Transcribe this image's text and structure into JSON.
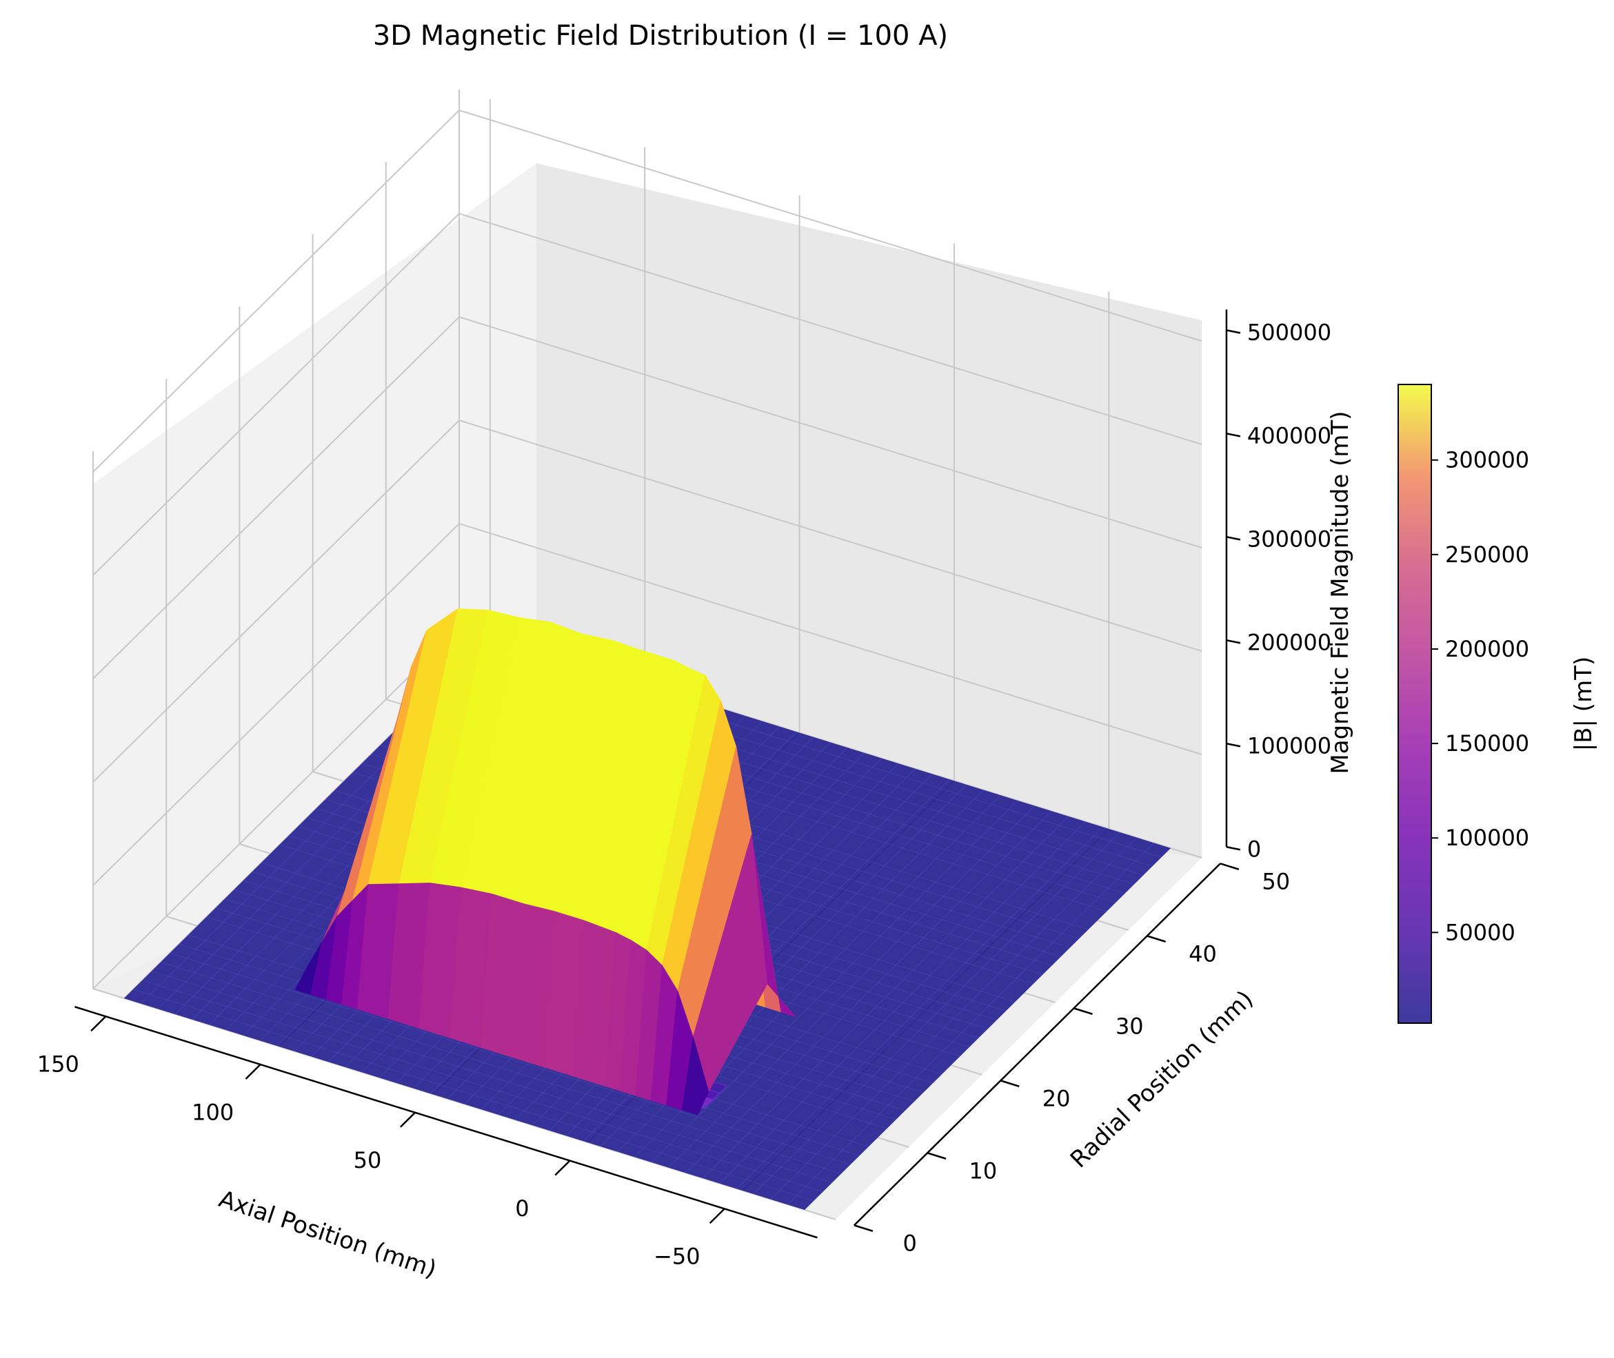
{
  "chart_data": {
    "type": "surface3d",
    "title": "3D Magnetic Field Distribution (I = 100 A)",
    "x_axis": {
      "label": "Axial Position (mm)",
      "range": [
        -80,
        160
      ],
      "ticks": [
        -50,
        0,
        50,
        100,
        150
      ],
      "tick_labels": [
        "−50",
        "0",
        "50",
        "100",
        "150"
      ]
    },
    "y_axis": {
      "label": "Radial Position (mm)",
      "range": [
        0,
        50
      ],
      "ticks": [
        0,
        10,
        20,
        30,
        40,
        50
      ],
      "tick_labels": [
        "0",
        "10",
        "20",
        "30",
        "40",
        "50"
      ]
    },
    "z_axis": {
      "label": "Magnetic Field Magnitude (mT)",
      "range": [
        0,
        520000
      ],
      "ticks": [
        0,
        100000,
        200000,
        300000,
        400000,
        500000
      ],
      "tick_labels": [
        "0",
        "100000",
        "200000",
        "300000",
        "400000",
        "500000"
      ]
    },
    "colorbar": {
      "label": "|B| (mT)",
      "colormap": "plasma",
      "range": [
        2000,
        340000
      ],
      "ticks": [
        50000,
        100000,
        150000,
        200000,
        250000,
        300000
      ],
      "tick_labels": [
        "50000",
        "100000",
        "150000",
        "200000",
        "250000",
        "300000"
      ]
    },
    "surface": {
      "axial_mm": [
        -20,
        -15,
        -10,
        -5,
        0,
        5,
        10,
        20,
        30,
        40,
        50,
        60,
        70,
        80,
        90,
        95,
        100,
        105,
        110
      ],
      "peak_B_mT": [
        60000,
        200000,
        280000,
        320000,
        340000,
        342000,
        345000,
        345000,
        346000,
        343000,
        345000,
        340000,
        338000,
        330000,
        300000,
        260000,
        200000,
        110000,
        30000
      ],
      "edge_B_mT": [
        12000,
        60000,
        100000,
        120000,
        130000,
        135000,
        138000,
        140000,
        140000,
        138000,
        138000,
        135000,
        130000,
        120000,
        110000,
        90000,
        70000,
        40000,
        10000
      ],
      "coil_radius_mm": 8,
      "background_B_mT": 2000
    },
    "grid": true
  }
}
